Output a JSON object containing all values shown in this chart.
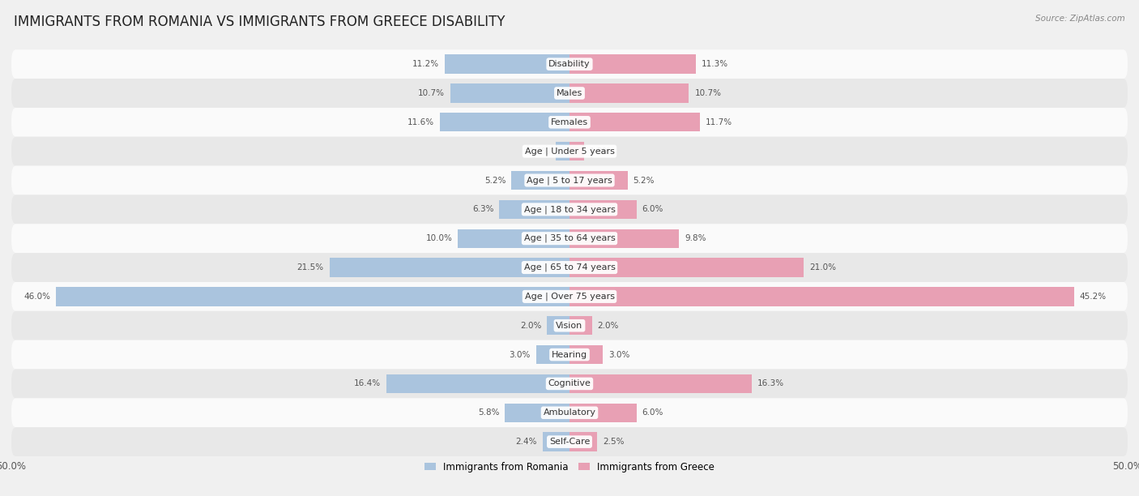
{
  "title": "IMMIGRANTS FROM ROMANIA VS IMMIGRANTS FROM GREECE DISABILITY",
  "source": "Source: ZipAtlas.com",
  "categories": [
    "Disability",
    "Males",
    "Females",
    "Age | Under 5 years",
    "Age | 5 to 17 years",
    "Age | 18 to 34 years",
    "Age | 35 to 64 years",
    "Age | 65 to 74 years",
    "Age | Over 75 years",
    "Vision",
    "Hearing",
    "Cognitive",
    "Ambulatory",
    "Self-Care"
  ],
  "romania_values": [
    11.2,
    10.7,
    11.6,
    1.2,
    5.2,
    6.3,
    10.0,
    21.5,
    46.0,
    2.0,
    3.0,
    16.4,
    5.8,
    2.4
  ],
  "greece_values": [
    11.3,
    10.7,
    11.7,
    1.3,
    5.2,
    6.0,
    9.8,
    21.0,
    45.2,
    2.0,
    3.0,
    16.3,
    6.0,
    2.5
  ],
  "romania_color": "#aac4de",
  "greece_color": "#e8a0b4",
  "max_value": 50.0,
  "background_color": "#f0f0f0",
  "row_color_light": "#fafafa",
  "row_color_dark": "#e8e8e8",
  "title_fontsize": 12,
  "label_fontsize": 8,
  "value_fontsize": 7.5,
  "legend_labels": [
    "Immigrants from Romania",
    "Immigrants from Greece"
  ]
}
